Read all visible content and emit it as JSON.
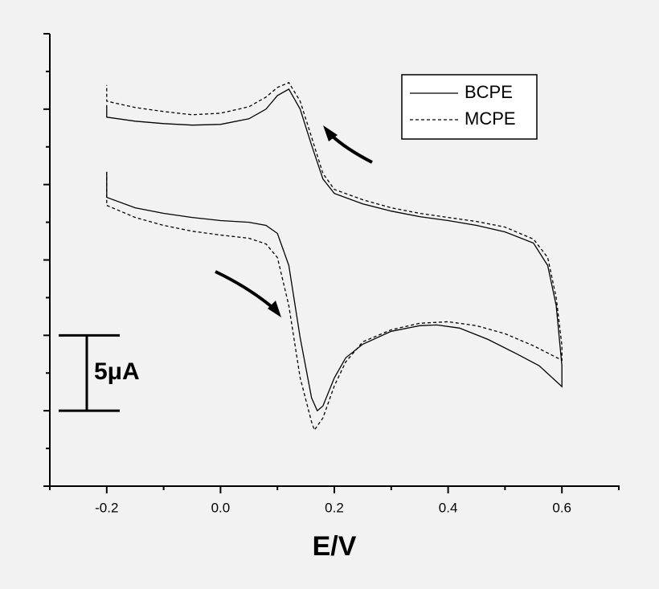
{
  "chart_data": {
    "type": "line",
    "xlabel": "E/V",
    "xlim": [
      -0.3,
      0.7
    ],
    "xticks": [
      -0.2,
      {
        "value": 0,
        "label": "0.0"
      },
      0.2,
      0.4,
      0.6
    ],
    "xticks_minor": [
      -0.3,
      -0.1,
      0.1,
      0.3,
      0.5,
      0.7
    ],
    "ylim": [
      -5,
      25
    ],
    "yticks": [
      -5,
      0,
      5,
      10,
      15,
      20,
      25
    ],
    "yticks_minor": [
      -2.5,
      2.5,
      7.5,
      12.5,
      17.5,
      22.5
    ],
    "ytick_labels": false,
    "legend": "upper right",
    "scale_bar": {
      "label": "5μA",
      "value": 5
    },
    "series": [
      {
        "name": "BCPE",
        "color": "#000000",
        "dash": "solid",
        "x": [
          -0.2,
          -0.2,
          -0.15,
          -0.1,
          -0.05,
          0.0,
          0.05,
          0.08,
          0.1,
          0.12,
          0.14,
          0.16,
          0.17,
          0.18,
          0.2,
          0.22,
          0.25,
          0.3,
          0.35,
          0.38,
          0.42,
          0.47,
          0.52,
          0.56,
          0.6,
          0.6,
          0.59,
          0.575,
          0.55,
          0.5,
          0.45,
          0.4,
          0.35,
          0.3,
          0.25,
          0.2,
          0.18,
          0.16,
          0.14,
          0.12,
          0.1,
          0.08,
          0.05,
          0.0,
          -0.05,
          -0.1,
          -0.15,
          -0.2,
          -0.2
        ],
        "values": [
          15.74,
          14.15,
          13.46,
          13.09,
          12.82,
          12.61,
          12.5,
          12.29,
          11.76,
          9.63,
          4.84,
          0.85,
          0,
          0.32,
          2.18,
          3.51,
          4.41,
          5.27,
          5.64,
          5.69,
          5.48,
          4.73,
          3.78,
          2.98,
          1.6,
          2.98,
          6.97,
          9.63,
          11.12,
          11.86,
          12.29,
          12.61,
          12.87,
          13.24,
          13.72,
          14.41,
          15.37,
          17.61,
          20,
          21.33,
          20.9,
          20,
          19.36,
          18.99,
          18.94,
          19.04,
          19.2,
          19.47,
          20.27
        ]
      },
      {
        "name": "MCPE",
        "color": "#000000",
        "dash": "dashed",
        "x": [
          -0.2,
          -0.2,
          -0.15,
          -0.1,
          -0.05,
          0.0,
          0.05,
          0.08,
          0.1,
          0.12,
          0.14,
          0.16,
          0.165,
          0.18,
          0.2,
          0.22,
          0.25,
          0.3,
          0.35,
          0.4,
          0.45,
          0.5,
          0.55,
          0.6,
          0.6,
          0.59,
          0.575,
          0.55,
          0.5,
          0.45,
          0.4,
          0.35,
          0.3,
          0.25,
          0.2,
          0.18,
          0.16,
          0.14,
          0.12,
          0.1,
          0.08,
          0.05,
          0.0,
          -0.05,
          -0.1,
          -0.15,
          -0.2,
          -0.2
        ],
        "values": [
          15.85,
          13.62,
          12.82,
          12.29,
          11.91,
          11.65,
          11.44,
          11.06,
          10.16,
          6.97,
          2.18,
          -0.74,
          -1.28,
          -0.48,
          1.65,
          3.24,
          4.57,
          5.37,
          5.8,
          5.9,
          5.64,
          5.11,
          4.31,
          3.35,
          4.31,
          7.5,
          10.16,
          11.38,
          12.18,
          12.55,
          12.82,
          13.09,
          13.46,
          13.99,
          14.68,
          15.74,
          18.14,
          20.53,
          21.76,
          21.44,
          20.8,
          20.16,
          19.73,
          19.63,
          19.84,
          20.11,
          20.53,
          21.6
        ]
      }
    ]
  }
}
